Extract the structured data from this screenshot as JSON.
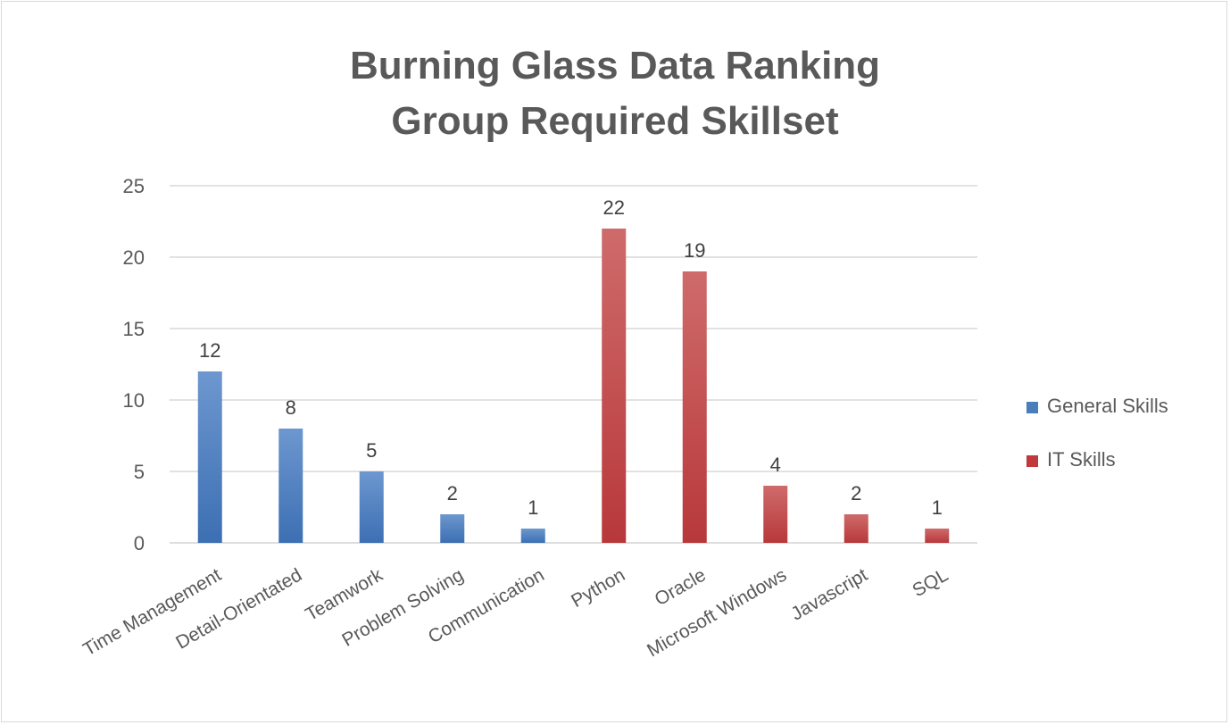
{
  "chart_data": {
    "type": "bar",
    "title_lines": [
      "Burning Glass Data Ranking",
      "Group Required Skillset"
    ],
    "categories": [
      "Time Management",
      "Detail-Orientated",
      "Teamwork",
      "Problem Solving",
      "Communication",
      "Python",
      "Oracle",
      "Microsoft Windows",
      "Javascript",
      "SQL"
    ],
    "series": [
      {
        "name": "General Skills",
        "color": "#4a7ebb",
        "values": [
          12,
          8,
          5,
          2,
          1,
          null,
          null,
          null,
          null,
          null
        ]
      },
      {
        "name": "IT Skills",
        "color": "#c0393b",
        "values": [
          null,
          null,
          null,
          null,
          null,
          22,
          19,
          4,
          2,
          1
        ]
      }
    ],
    "ylim": [
      0,
      25
    ],
    "yticks": [
      0,
      5,
      10,
      15,
      20,
      25
    ],
    "grid": true,
    "legend_position": "right",
    "data_labels": true,
    "xlabel": "",
    "ylabel": ""
  }
}
